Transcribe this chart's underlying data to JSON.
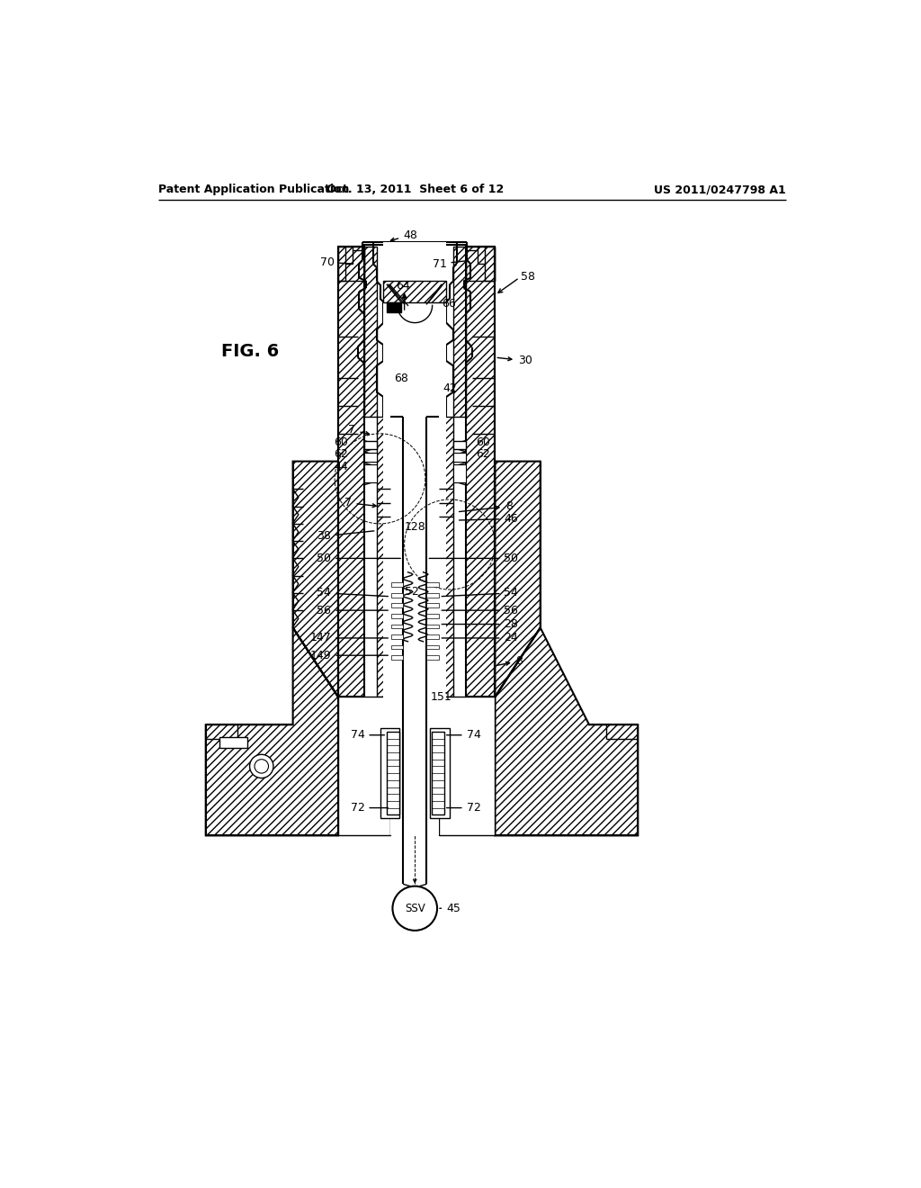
{
  "header_left": "Patent Application Publication",
  "header_center": "Oct. 13, 2011  Sheet 6 of 12",
  "header_right": "US 2011/0247798 A1",
  "fig_label": "FIG. 6",
  "background_color": "#ffffff",
  "line_color": "#000000",
  "fig_width": 1024,
  "fig_height": 1320
}
